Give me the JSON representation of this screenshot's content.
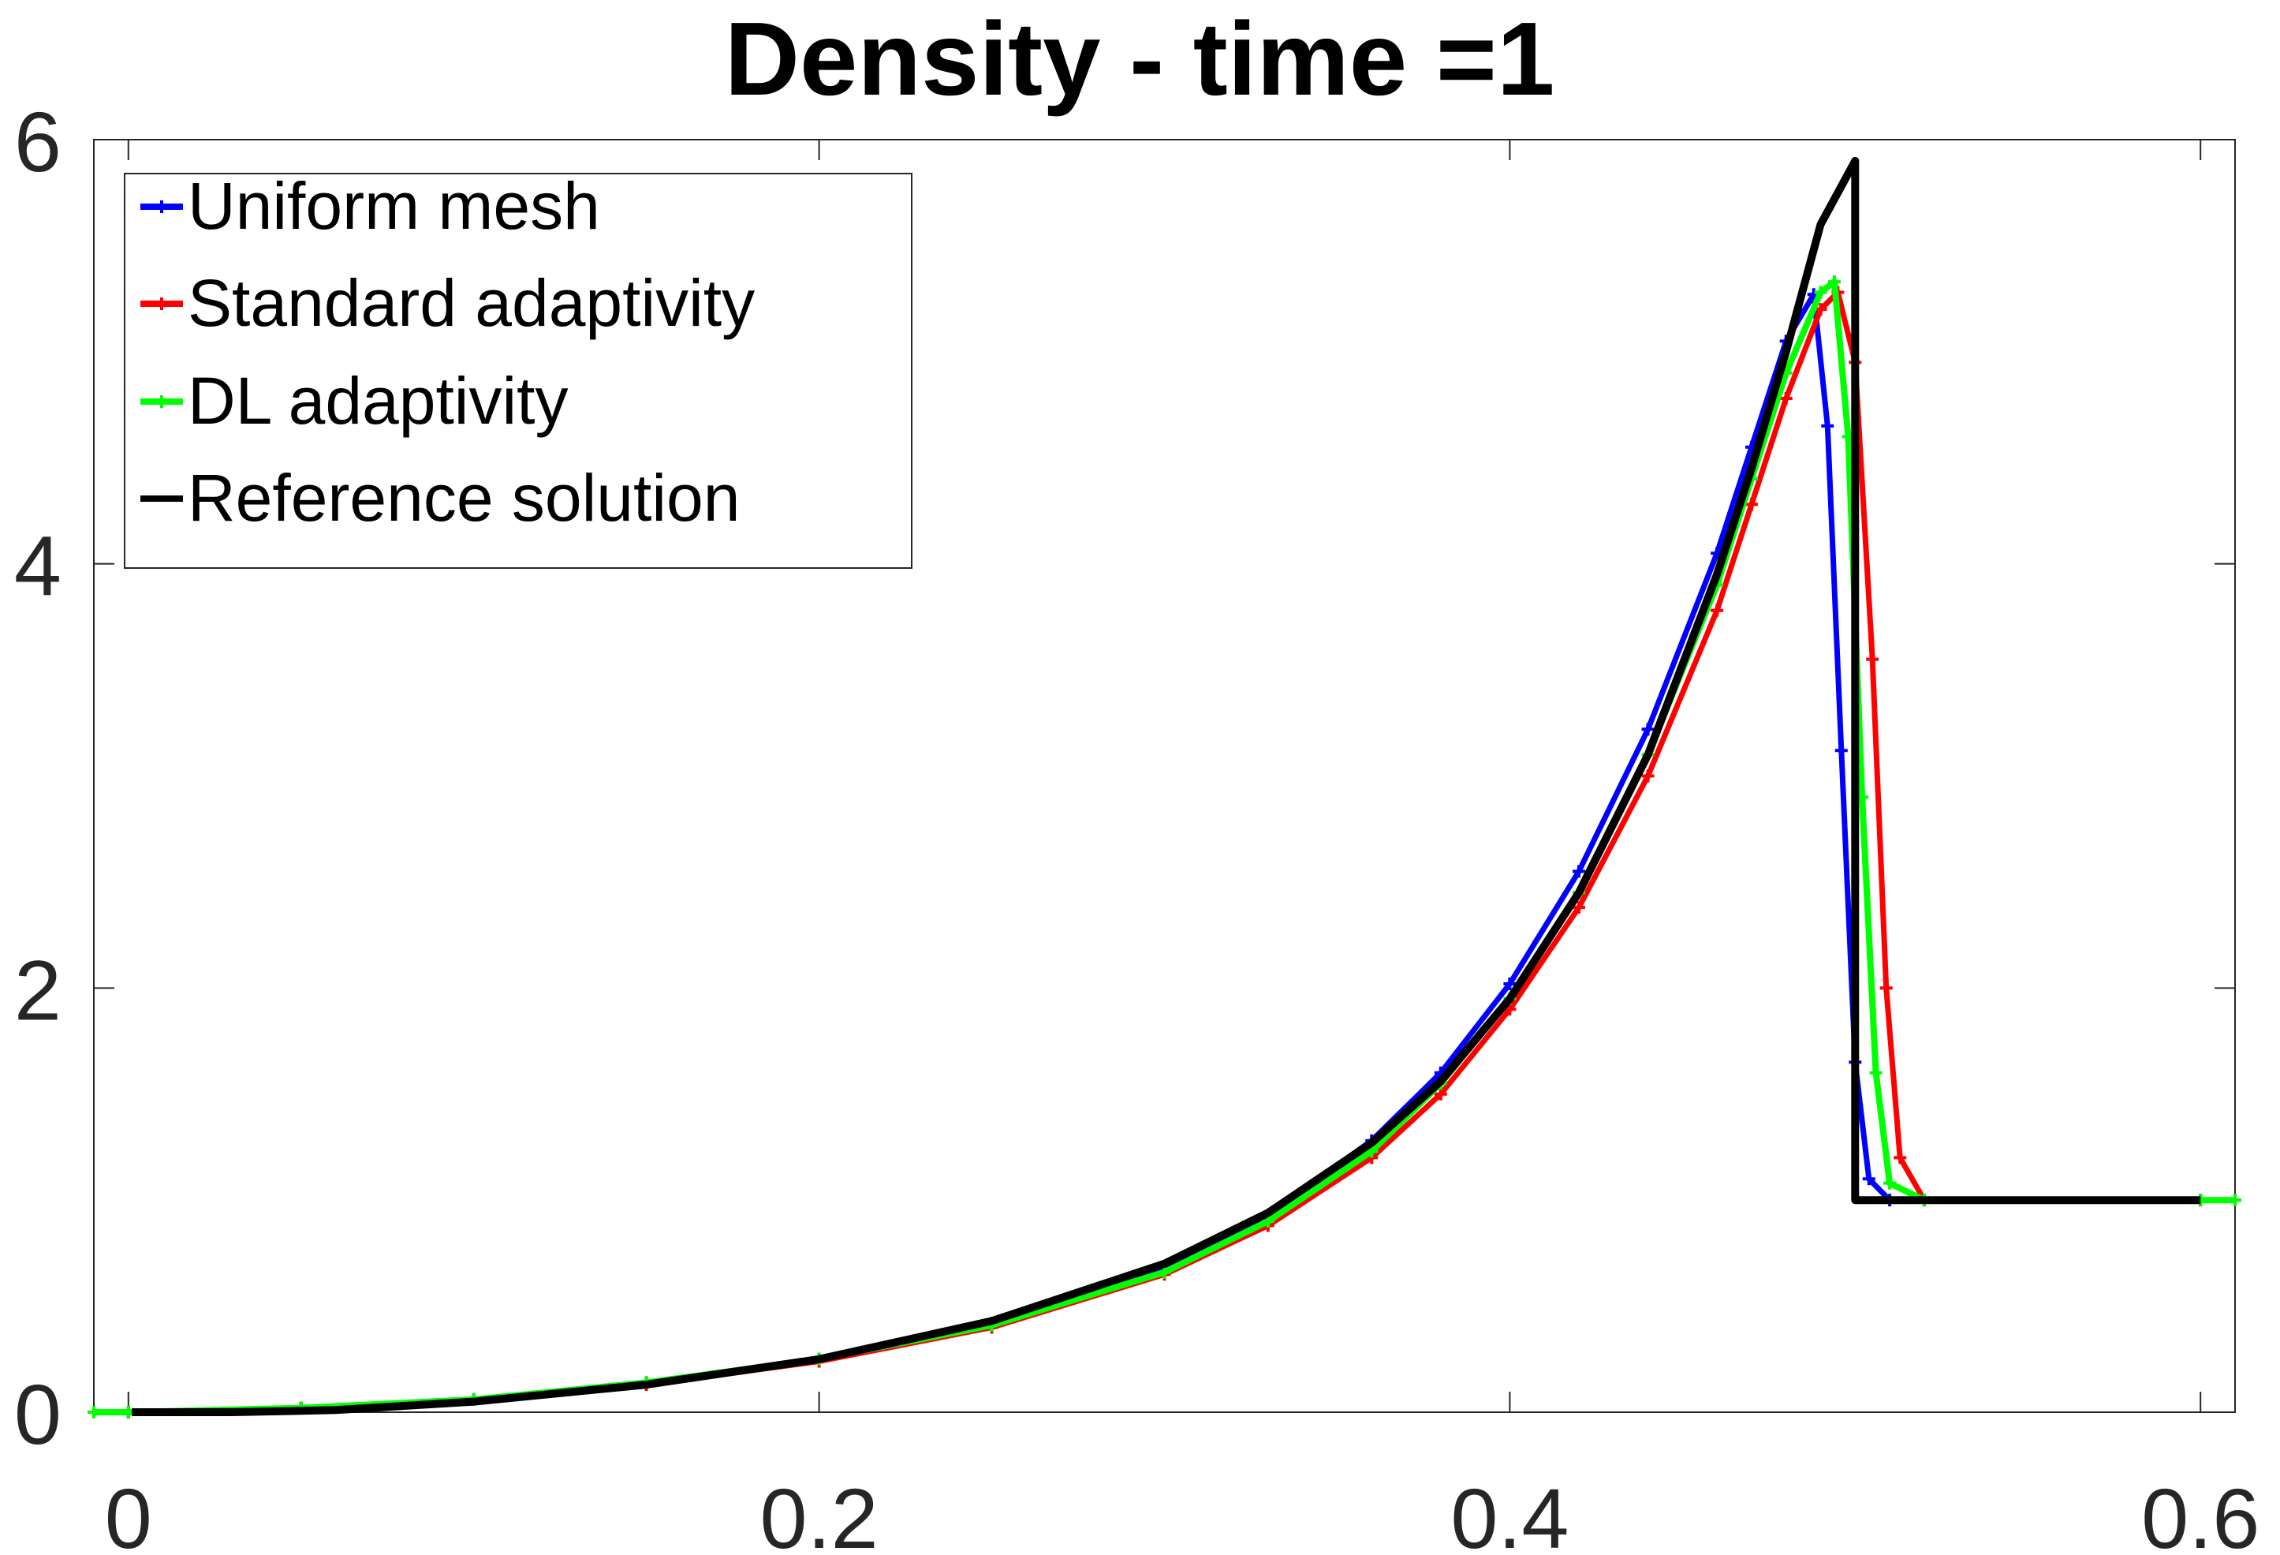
{
  "chart_data": {
    "type": "line",
    "title": "Density - time =1",
    "xlabel": "",
    "ylabel": "",
    "xlim": [
      -0.01,
      0.61
    ],
    "ylim": [
      0,
      6
    ],
    "xticks": [
      0,
      0.2,
      0.4,
      0.6
    ],
    "xtick_labels": [
      "0",
      "0.2",
      "0.4",
      "0.6"
    ],
    "yticks": [
      0,
      2,
      4,
      6
    ],
    "ytick_labels": [
      "0",
      "2",
      "4",
      "6"
    ],
    "grid": false,
    "legend_position": "top-left",
    "series": [
      {
        "name": "Uniform mesh",
        "color": "#0000ff",
        "marker": "+",
        "x": [
          -0.01,
          0.0,
          0.05,
          0.1,
          0.15,
          0.2,
          0.25,
          0.3,
          0.33,
          0.36,
          0.38,
          0.4,
          0.42,
          0.44,
          0.46,
          0.47,
          0.48,
          0.488,
          0.492,
          0.496,
          0.5,
          0.504,
          0.51,
          0.52,
          0.6,
          0.61
        ],
        "y": [
          0.0,
          0.0,
          0.02,
          0.06,
          0.14,
          0.25,
          0.42,
          0.68,
          0.93,
          1.28,
          1.6,
          2.02,
          2.55,
          3.22,
          4.05,
          4.55,
          5.05,
          5.27,
          4.65,
          3.12,
          1.65,
          1.1,
          1.0,
          1.0,
          1.0,
          1.0
        ]
      },
      {
        "name": "Standard adaptivity",
        "color": "#ff0000",
        "marker": "+",
        "x": [
          -0.01,
          0.0,
          0.05,
          0.1,
          0.15,
          0.2,
          0.25,
          0.3,
          0.33,
          0.36,
          0.38,
          0.4,
          0.42,
          0.44,
          0.46,
          0.47,
          0.48,
          0.49,
          0.495,
          0.5,
          0.505,
          0.509,
          0.513,
          0.52,
          0.6,
          0.61
        ],
        "y": [
          0.0,
          0.0,
          0.02,
          0.06,
          0.13,
          0.24,
          0.4,
          0.65,
          0.88,
          1.2,
          1.5,
          1.9,
          2.38,
          3.0,
          3.78,
          4.28,
          4.78,
          5.2,
          5.28,
          4.95,
          3.55,
          2.0,
          1.2,
          1.0,
          1.0,
          1.0
        ]
      },
      {
        "name": "DL adaptivity",
        "color": "#00ff00",
        "marker": "+",
        "x": [
          -0.01,
          0.0,
          0.05,
          0.1,
          0.15,
          0.2,
          0.25,
          0.3,
          0.33,
          0.36,
          0.38,
          0.4,
          0.42,
          0.44,
          0.46,
          0.47,
          0.48,
          0.49,
          0.494,
          0.498,
          0.502,
          0.506,
          0.51,
          0.52,
          0.6,
          0.61
        ],
        "y": [
          0.0,
          0.0,
          0.02,
          0.06,
          0.14,
          0.25,
          0.41,
          0.66,
          0.9,
          1.23,
          1.55,
          1.95,
          2.45,
          3.1,
          3.9,
          4.4,
          4.9,
          5.28,
          5.33,
          4.6,
          2.9,
          1.6,
          1.08,
          1.0,
          1.0,
          1.0
        ]
      },
      {
        "name": "Reference solution",
        "color": "#000000",
        "marker": "none",
        "x": [
          0.001,
          0.03,
          0.06,
          0.1,
          0.15,
          0.2,
          0.25,
          0.3,
          0.33,
          0.36,
          0.38,
          0.4,
          0.42,
          0.44,
          0.46,
          0.47,
          0.48,
          0.49,
          0.5,
          0.5,
          0.502,
          0.6
        ],
        "y": [
          0.0,
          0.0,
          0.01,
          0.05,
          0.13,
          0.25,
          0.43,
          0.7,
          0.94,
          1.27,
          1.56,
          1.95,
          2.45,
          3.1,
          3.95,
          4.45,
          5.0,
          5.6,
          5.9,
          1.0,
          1.0,
          1.0
        ]
      }
    ]
  }
}
